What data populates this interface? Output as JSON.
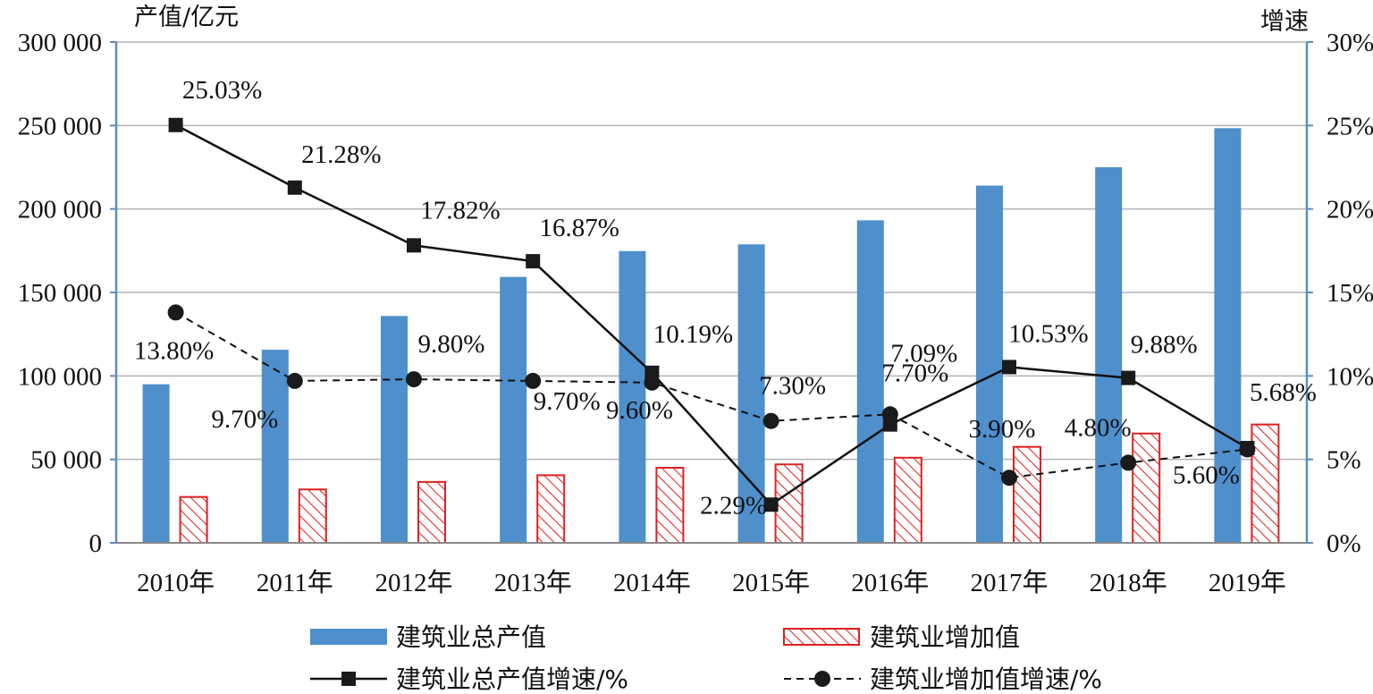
{
  "chart_data": {
    "type": "bar",
    "categories": [
      "2010年",
      "2011年",
      "2012年",
      "2013年",
      "2014年",
      "2015年",
      "2016年",
      "2017年",
      "2018年",
      "2019年"
    ],
    "left_axis": {
      "label": "产值/亿元",
      "ylim": [
        0,
        300000
      ],
      "ticks": [
        0,
        50000,
        100000,
        150000,
        200000,
        250000,
        300000
      ],
      "tick_labels": [
        "0",
        "50 000",
        "100 000",
        "150 000",
        "200 000",
        "250 000",
        "300 000"
      ]
    },
    "right_axis": {
      "label": "增速",
      "ylim": [
        0,
        30
      ],
      "ticks": [
        0,
        5,
        10,
        15,
        20,
        25,
        30
      ],
      "tick_labels": [
        "0%",
        "5%",
        "10%",
        "15%",
        "20%",
        "25%",
        "30%"
      ]
    },
    "grid": true,
    "legend_position": "bottom",
    "series": [
      {
        "name": "建筑业总产值",
        "kind": "bar",
        "axis": "left",
        "color": "#4e8fcc",
        "pattern": "solid",
        "values": [
          95000,
          115700,
          135900,
          159300,
          174800,
          178800,
          193200,
          214000,
          225000,
          248400
        ]
      },
      {
        "name": "建筑业增加值",
        "kind": "bar",
        "axis": "left",
        "color": "#e02020",
        "pattern": "hatched",
        "values": [
          27500,
          32000,
          36500,
          40500,
          45000,
          47000,
          51000,
          57500,
          65500,
          70900
        ]
      },
      {
        "name": "建筑业总产值增速/%",
        "kind": "line",
        "axis": "right",
        "color": "#111111",
        "dash": "solid",
        "marker": "square",
        "values": [
          25.03,
          21.28,
          17.82,
          16.87,
          10.19,
          2.29,
          7.09,
          10.53,
          9.88,
          5.68
        ],
        "labels": [
          "25.03%",
          "21.28%",
          "17.82%",
          "16.87%",
          "10.19%",
          "2.29%",
          "7.09%",
          "10.53%",
          "9.88%",
          "5.68%"
        ]
      },
      {
        "name": "建筑业增加值增速/%",
        "kind": "line",
        "axis": "right",
        "color": "#111111",
        "dash": "dashed",
        "marker": "circle",
        "values": [
          13.8,
          9.7,
          9.8,
          9.7,
          9.6,
          7.3,
          7.7,
          3.9,
          4.8,
          5.6
        ],
        "labels": [
          "13.80%",
          "9.70%",
          "9.80%",
          "9.70%",
          "9.60%",
          "7.30%",
          "7.70%",
          "3.90%",
          "4.80%",
          "5.60%"
        ]
      }
    ]
  }
}
